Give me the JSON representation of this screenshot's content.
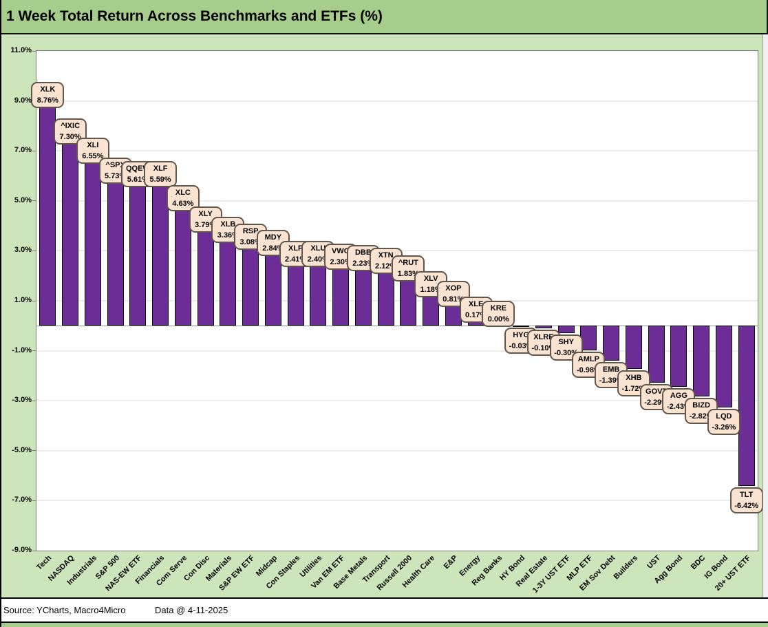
{
  "title": "1 Week Total Return Across Benchmarks and ETFs (%)",
  "footer": {
    "source": "Source: YCharts, Macro4Micro",
    "data_date": "Data @ 4-11-2025"
  },
  "colors": {
    "title_bg": "#a7cd8c",
    "body_bg": "#cde5bb",
    "plot_bg": "#ffffff",
    "grid": "#ececec",
    "bar": "#6c2e96",
    "callout_fill": "#fbe3d2",
    "callout_border": "#60564c"
  },
  "chart_data": {
    "type": "bar",
    "title": "1 Week Total Return Across Benchmarks and ETFs (%)",
    "xlabel": "",
    "ylabel": "",
    "ylim": [
      -9.0,
      11.0
    ],
    "y_tick_step": 2.0,
    "grid": true,
    "legend": "none",
    "y_ticks": [
      {
        "label": "11.0%",
        "value": 11
      },
      {
        "label": "9.0%",
        "value": 9
      },
      {
        "label": "7.0%",
        "value": 7
      },
      {
        "label": "5.0%",
        "value": 5
      },
      {
        "label": "3.0%",
        "value": 3
      },
      {
        "label": "1.0%",
        "value": 1
      },
      {
        "label": "-1.0%",
        "value": -1
      },
      {
        "label": "-3.0%",
        "value": -3
      },
      {
        "label": "-5.0%",
        "value": -5
      },
      {
        "label": "-7.0%",
        "value": -7
      },
      {
        "label": "-9.0%",
        "value": -9
      }
    ],
    "points": [
      {
        "category": "Tech",
        "ticker": "XLK",
        "value": 8.76,
        "label": "8.76%"
      },
      {
        "category": "NASDAQ",
        "ticker": "^IXIC",
        "value": 7.3,
        "label": "7.30%"
      },
      {
        "category": "Industrials",
        "ticker": "XLI",
        "value": 6.55,
        "label": "6.55%"
      },
      {
        "category": "S&P 500",
        "ticker": "^SPX",
        "value": 5.73,
        "label": "5.73%"
      },
      {
        "category": "NAS-EW ETF",
        "ticker": "QQEW",
        "value": 5.61,
        "label": "5.61%"
      },
      {
        "category": "Financials",
        "ticker": "XLF",
        "value": 5.59,
        "label": "5.59%"
      },
      {
        "category": "Com Serve",
        "ticker": "XLC",
        "value": 4.63,
        "label": "4.63%"
      },
      {
        "category": "Con Disc",
        "ticker": "XLY",
        "value": 3.79,
        "label": "3.79%"
      },
      {
        "category": "Materials",
        "ticker": "XLB",
        "value": 3.36,
        "label": "3.36%"
      },
      {
        "category": "S&P EW ETF",
        "ticker": "RSP",
        "value": 3.08,
        "label": "3.08%"
      },
      {
        "category": "Midcap",
        "ticker": "MDY",
        "value": 2.84,
        "label": "2.84%"
      },
      {
        "category": "Con Staples",
        "ticker": "XLP",
        "value": 2.41,
        "label": "2.41%"
      },
      {
        "category": "Utilities",
        "ticker": "XLU",
        "value": 2.4,
        "label": "2.40%"
      },
      {
        "category": "Van EM ETF",
        "ticker": "VWO",
        "value": 2.3,
        "label": "2.30%"
      },
      {
        "category": "Base Metals",
        "ticker": "DBB",
        "value": 2.23,
        "label": "2.23%"
      },
      {
        "category": "Transport",
        "ticker": "XTN",
        "value": 2.12,
        "label": "2.12%"
      },
      {
        "category": "Russell 2000",
        "ticker": "^RUT",
        "value": 1.83,
        "label": "1.83%"
      },
      {
        "category": "Health Care",
        "ticker": "XLV",
        "value": 1.18,
        "label": "1.18%"
      },
      {
        "category": "E&P",
        "ticker": "XOP",
        "value": 0.81,
        "label": "0.81%"
      },
      {
        "category": "Energy",
        "ticker": "XLE",
        "value": 0.17,
        "label": "0.17%"
      },
      {
        "category": "Reg Banks",
        "ticker": "KRE",
        "value": 0.0,
        "label": "0.00%"
      },
      {
        "category": "HY Bond",
        "ticker": "HYG",
        "value": -0.03,
        "label": "-0.03%"
      },
      {
        "category": "Real Estate",
        "ticker": "XLRE",
        "value": -0.1,
        "label": "-0.10%"
      },
      {
        "category": "1-3Y UST ETF",
        "ticker": "SHY",
        "value": -0.3,
        "label": "-0.30%"
      },
      {
        "category": "MLP ETF",
        "ticker": "AMLP",
        "value": -0.98,
        "label": "-0.98%"
      },
      {
        "category": "EM Sov Debt",
        "ticker": "EMB",
        "value": -1.39,
        "label": "-1.39%"
      },
      {
        "category": "Builders",
        "ticker": "XHB",
        "value": -1.72,
        "label": "-1.72%"
      },
      {
        "category": "UST",
        "ticker": "GOVT",
        "value": -2.29,
        "label": "-2.29%"
      },
      {
        "category": "Agg Bond",
        "ticker": "AGG",
        "value": -2.43,
        "label": "-2.43%"
      },
      {
        "category": "BDC",
        "ticker": "BIZD",
        "value": -2.82,
        "label": "-2.82%"
      },
      {
        "category": "IG Bond",
        "ticker": "LQD",
        "value": -3.26,
        "label": "-3.26%"
      },
      {
        "category": "20+ UST ETF",
        "ticker": "TLT",
        "value": -6.42,
        "label": "-6.42%"
      }
    ]
  }
}
